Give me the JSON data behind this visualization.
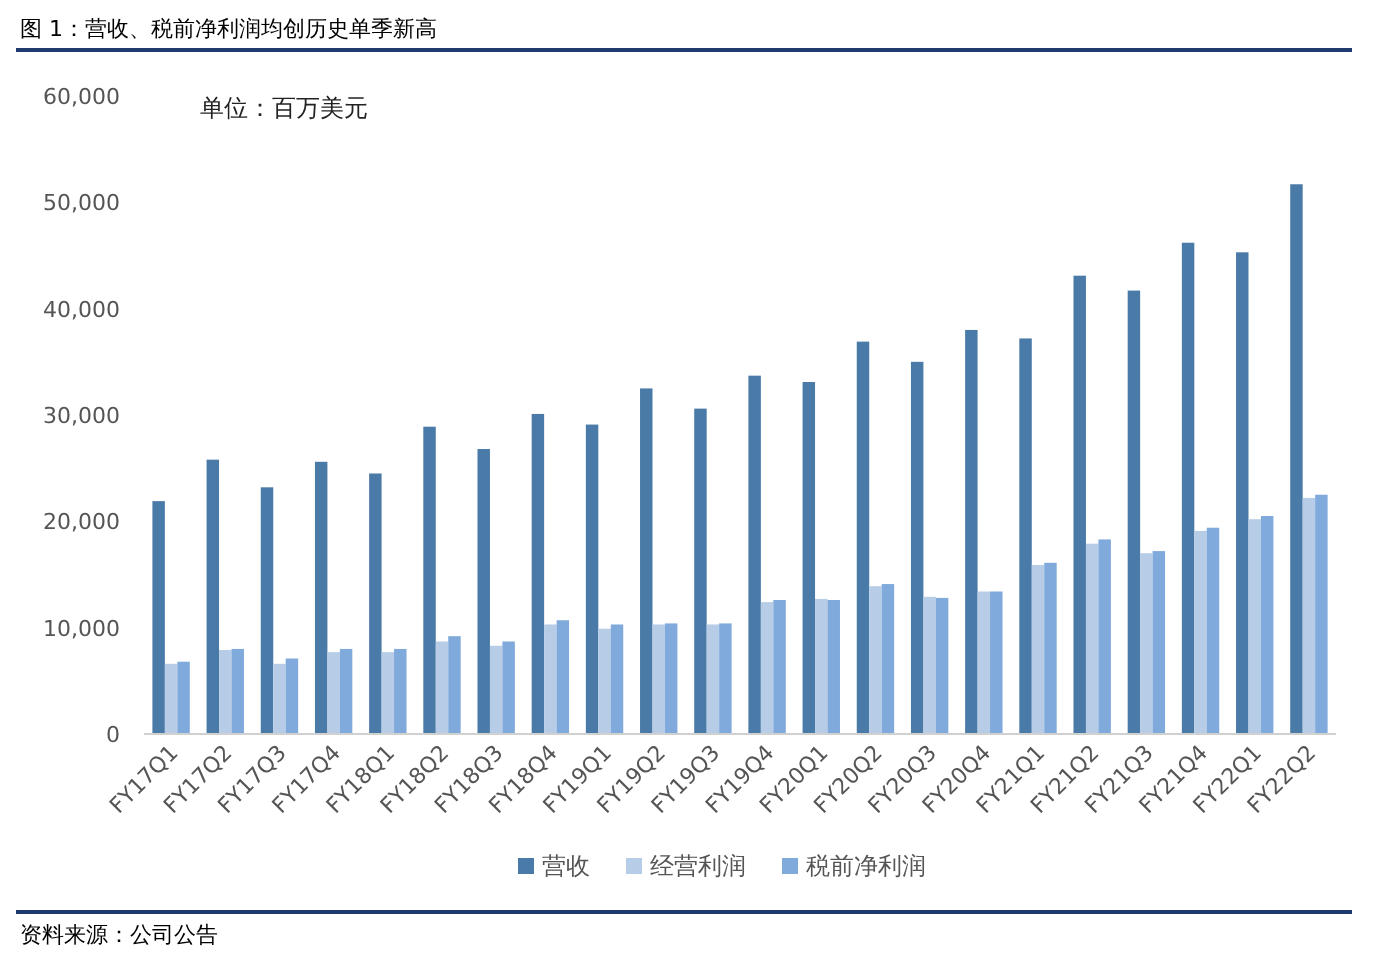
{
  "chart_data": {
    "type": "bar",
    "title": "图 1：营收、税前净利润均创历史单季新高",
    "annotations": [
      "单位：百万美元",
      "资料来源：公司公告"
    ],
    "categories": [
      "FY17Q1",
      "FY17Q2",
      "FY17Q3",
      "FY17Q4",
      "FY18Q1",
      "FY18Q2",
      "FY18Q3",
      "FY18Q4",
      "FY19Q1",
      "FY19Q2",
      "FY19Q3",
      "FY19Q4",
      "FY20Q1",
      "FY20Q2",
      "FY20Q3",
      "FY20Q4",
      "FY21Q1",
      "FY21Q2",
      "FY21Q3",
      "FY21Q4",
      "FY22Q1",
      "FY22Q2"
    ],
    "series": [
      {
        "name": "营收",
        "color": "#4a7aa7",
        "values": [
          21900,
          25800,
          23200,
          25600,
          24500,
          28900,
          26800,
          30100,
          29100,
          32500,
          30600,
          33700,
          33100,
          36900,
          35000,
          38000,
          37200,
          43100,
          41700,
          46200,
          45300,
          51700
        ]
      },
      {
        "name": "经营利润",
        "color": "#b7cce6",
        "values": [
          6600,
          7900,
          6600,
          7700,
          7700,
          8700,
          8300,
          10300,
          9900,
          10300,
          10300,
          12400,
          12700,
          13900,
          12900,
          13400,
          15900,
          17900,
          17000,
          19100,
          20200,
          22200
        ]
      },
      {
        "name": "税前净利润",
        "color": "#7faadb",
        "values": [
          6800,
          8000,
          7100,
          8000,
          8000,
          9200,
          8700,
          10700,
          10300,
          10400,
          10400,
          12600,
          12600,
          14100,
          12800,
          13400,
          16100,
          18300,
          17200,
          19400,
          20500,
          22500
        ]
      }
    ],
    "ylim": [
      0,
      60000
    ],
    "yticks": [
      0,
      {
        "value": 10000,
        "label": "10,000"
      },
      {
        "value": 20000,
        "label": "20,000"
      },
      {
        "value": 30000,
        "label": "30,000"
      },
      {
        "value": 40000,
        "label": "40,000"
      },
      {
        "value": 50000,
        "label": "50,000"
      },
      {
        "value": 60000,
        "label": "60,000"
      }
    ],
    "legend": "bottom"
  }
}
